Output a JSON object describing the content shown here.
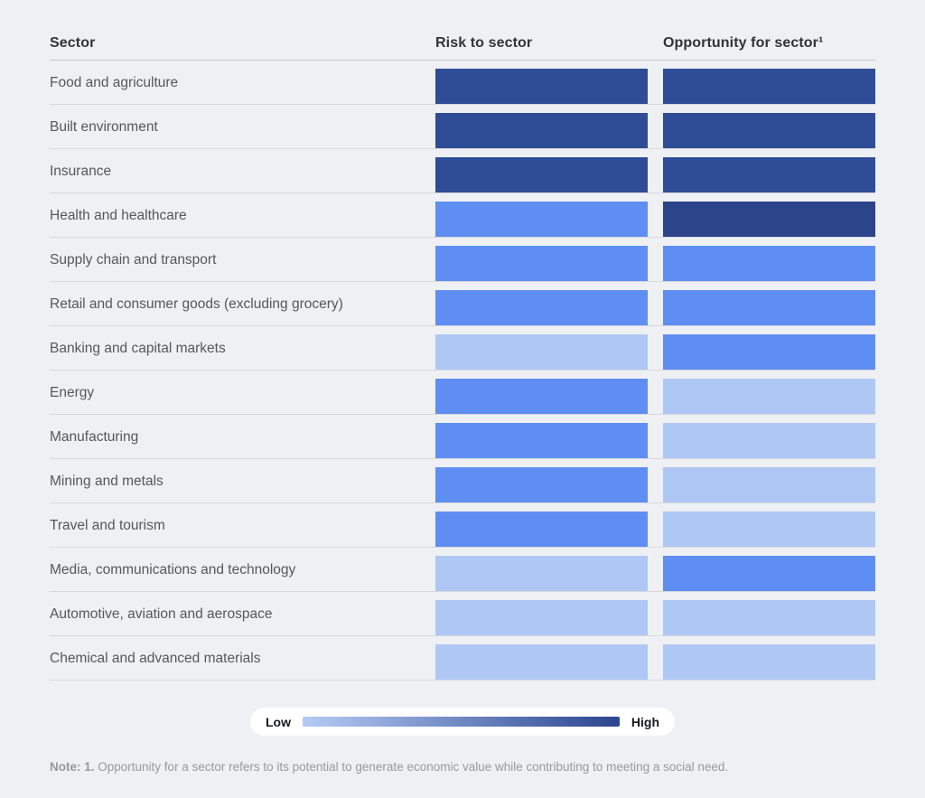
{
  "table": {
    "columns": {
      "sector": "Sector",
      "risk": "Risk to sector",
      "opportunity": "Opportunity for sector¹"
    },
    "rows": [
      {
        "sector": "Food and agriculture",
        "risk": "high",
        "opportunity": "high"
      },
      {
        "sector": "Built environment",
        "risk": "high",
        "opportunity": "high"
      },
      {
        "sector": "Insurance",
        "risk": "high",
        "opportunity": "high"
      },
      {
        "sector": "Health and healthcare",
        "risk": "medium",
        "opportunity": "very_high"
      },
      {
        "sector": "Supply chain and transport",
        "risk": "medium",
        "opportunity": "medium"
      },
      {
        "sector": "Retail and consumer goods (excluding grocery)",
        "risk": "medium",
        "opportunity": "medium"
      },
      {
        "sector": "Banking and capital markets",
        "risk": "low",
        "opportunity": "medium"
      },
      {
        "sector": "Energy",
        "risk": "medium",
        "opportunity": "low"
      },
      {
        "sector": "Manufacturing",
        "risk": "medium",
        "opportunity": "low"
      },
      {
        "sector": "Mining and metals",
        "risk": "medium",
        "opportunity": "low"
      },
      {
        "sector": "Travel and tourism",
        "risk": "medium",
        "opportunity": "low"
      },
      {
        "sector": "Media, communications and technology",
        "risk": "low",
        "opportunity": "medium"
      },
      {
        "sector": "Automotive, aviation and aerospace",
        "risk": "low",
        "opportunity": "low"
      },
      {
        "sector": "Chemical and advanced materials",
        "risk": "low",
        "opportunity": "low"
      }
    ]
  },
  "legend": {
    "low_label": "Low",
    "high_label": "High"
  },
  "note": {
    "prefix": "Note: 1.",
    "text": " Opportunity for a sector refers to its potential to generate economic value while contributing to meeting a social need."
  },
  "colors": {
    "background": "#eef0f4",
    "levels": {
      "low": "#afc7f4",
      "medium": "#5f8ef2",
      "high": "#2f4c96",
      "very_high": "#2c4489"
    },
    "legend_start": "#b5cbf5",
    "legend_end": "#2b4590"
  },
  "chart_data": {
    "type": "heatmap",
    "title": "",
    "categories": [
      "Food and agriculture",
      "Built environment",
      "Insurance",
      "Health and healthcare",
      "Supply chain and transport",
      "Retail and consumer goods (excluding grocery)",
      "Banking and capital markets",
      "Energy",
      "Manufacturing",
      "Mining and metals",
      "Travel and tourism",
      "Media, communications and technology",
      "Automotive, aviation and aerospace",
      "Chemical and advanced materials"
    ],
    "series": [
      {
        "name": "Risk to sector",
        "values": [
          "high",
          "high",
          "high",
          "medium",
          "medium",
          "medium",
          "low",
          "medium",
          "medium",
          "medium",
          "medium",
          "low",
          "low",
          "low"
        ]
      },
      {
        "name": "Opportunity for sector",
        "values": [
          "high",
          "high",
          "high",
          "very_high",
          "medium",
          "medium",
          "medium",
          "low",
          "low",
          "low",
          "low",
          "medium",
          "low",
          "low"
        ]
      }
    ],
    "value_scale": [
      "low",
      "medium",
      "high",
      "very_high"
    ],
    "legend": {
      "min_label": "Low",
      "max_label": "High",
      "position": "bottom-center"
    },
    "annotations": [
      "Note: 1. Opportunity for a sector refers to its potential to generate economic value while contributing to meeting a social need."
    ]
  }
}
